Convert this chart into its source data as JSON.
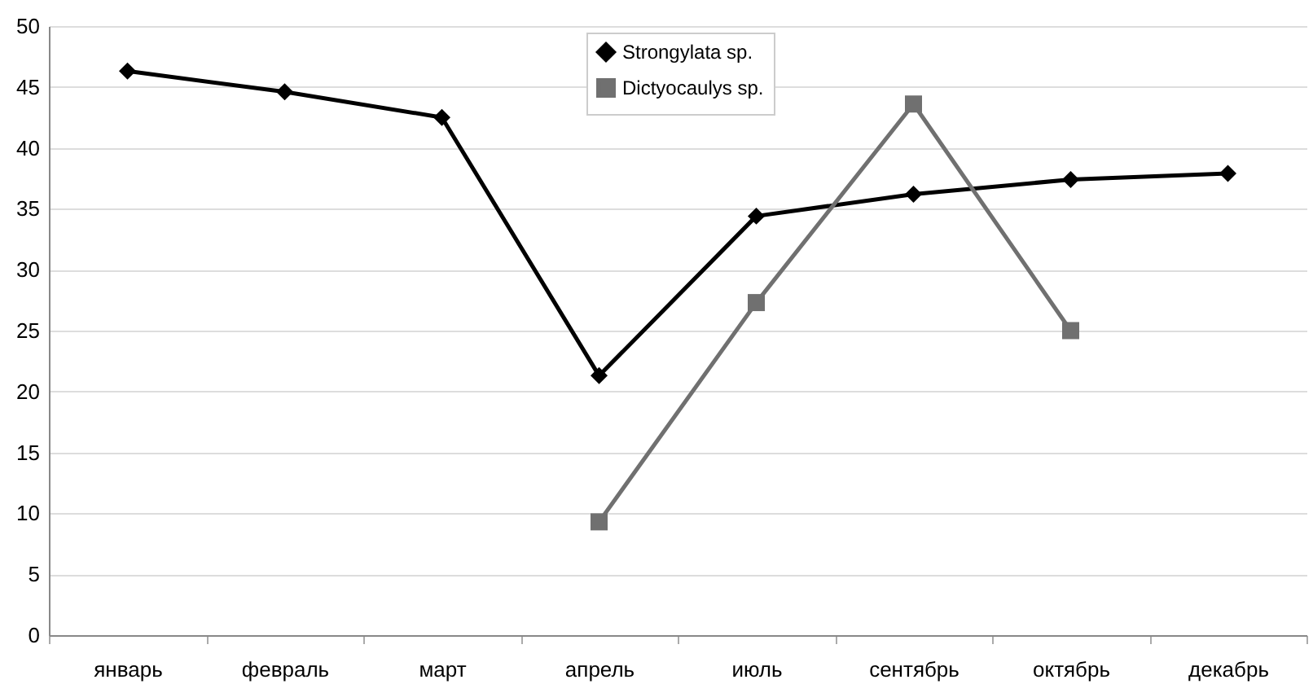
{
  "chart_data": {
    "type": "line",
    "categories": [
      "январь",
      "февраль",
      "март",
      "апрель",
      "июль",
      "сентябрь",
      "октябрь",
      "декабрь"
    ],
    "series": [
      {
        "name": "Strongylata sp.",
        "color": "#000000",
        "marker": "diamond",
        "values": [
          46.3,
          44.6,
          42.5,
          21.3,
          34.4,
          36.2,
          37.4,
          37.9
        ]
      },
      {
        "name": "Dictyocaulys sp.",
        "color": "#707070",
        "marker": "square",
        "values": [
          null,
          null,
          null,
          9.3,
          27.3,
          43.6,
          25.0,
          null
        ]
      }
    ],
    "ylim": [
      0,
      50
    ],
    "yticks": [
      0,
      5,
      10,
      15,
      20,
      25,
      30,
      35,
      40,
      45,
      50
    ],
    "grid": "y",
    "legend": "top",
    "line_style": "solid"
  }
}
